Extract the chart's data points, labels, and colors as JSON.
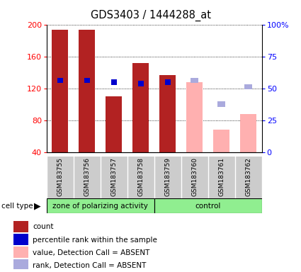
{
  "title": "GDS3403 / 1444288_at",
  "samples": [
    "GSM183755",
    "GSM183756",
    "GSM183757",
    "GSM183758",
    "GSM183759",
    "GSM183760",
    "GSM183761",
    "GSM183762"
  ],
  "ylim_left": [
    40,
    200
  ],
  "ylim_right": [
    0,
    100
  ],
  "yticks_left": [
    40,
    80,
    120,
    160,
    200
  ],
  "yticks_right": [
    0,
    25,
    50,
    75,
    100
  ],
  "bar_values": [
    193,
    193,
    110,
    152,
    137,
    128,
    68,
    88
  ],
  "bar_colors": [
    "#b22222",
    "#b22222",
    "#b22222",
    "#b22222",
    "#b22222",
    "#ffb0b0",
    "#ffb0b0",
    "#ffb0b0"
  ],
  "rank_present_y": [
    130,
    130,
    128,
    126,
    128,
    null,
    null,
    null
  ],
  "rank_absent_y": [
    null,
    null,
    null,
    null,
    null,
    130,
    100,
    122
  ],
  "group1_count": 4,
  "group1_label": "zone of polarizing activity",
  "group2_label": "control",
  "group_bg_color": "#90ee90",
  "sample_bg_color": "#cccccc",
  "legend_items": [
    {
      "color": "#b22222",
      "label": "count"
    },
    {
      "color": "#0000cc",
      "label": "percentile rank within the sample"
    },
    {
      "color": "#ffb0b0",
      "label": "value, Detection Call = ABSENT"
    },
    {
      "color": "#aaaadd",
      "label": "rank, Detection Call = ABSENT"
    }
  ]
}
